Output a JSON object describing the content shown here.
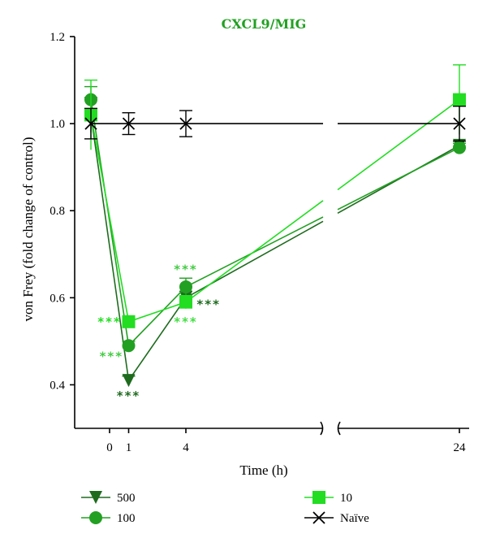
{
  "chart_data": {
    "type": "line",
    "title": "CXCL9/MIG",
    "xlabel": "Time (h)",
    "ylabel": "von Frey (fold change of control)",
    "x_ticks": [
      "0",
      "1",
      "4",
      "24"
    ],
    "y_ticks": [
      "0.4",
      "0.6",
      "0.8",
      "1.0",
      "1.2"
    ],
    "ylim": [
      0.3,
      1.2
    ],
    "x_axis_broken": true,
    "series": [
      {
        "name": "500",
        "marker": "triangle-down",
        "color": "#1e6b1e",
        "x": [
          0,
          1,
          4,
          24
        ],
        "y": [
          1.02,
          0.41,
          0.6,
          0.95
        ],
        "err": [
          0.04,
          0.01,
          0.015,
          0.01
        ]
      },
      {
        "name": "100",
        "marker": "circle",
        "color": "#22a022",
        "x": [
          0,
          1,
          4,
          24
        ],
        "y": [
          1.055,
          0.49,
          0.625,
          0.945
        ],
        "err": [
          0.03,
          0.01,
          0.02,
          0.01
        ]
      },
      {
        "name": "10",
        "marker": "square",
        "color": "#22dd22",
        "x": [
          0,
          1,
          4,
          24
        ],
        "y": [
          1.02,
          0.545,
          0.59,
          1.055
        ],
        "err": [
          0.08,
          0.01,
          0.015,
          0.08
        ]
      },
      {
        "name": "Naïve",
        "marker": "x",
        "color": "#000000",
        "x": [
          0,
          1,
          4,
          24
        ],
        "y": [
          1.0,
          1.0,
          1.0,
          1.0
        ],
        "err": [
          0.035,
          0.025,
          0.03,
          0.04
        ]
      }
    ],
    "annotations": [
      {
        "text": "***",
        "x": 1,
        "y": 0.375,
        "color": "#1e6b1e"
      },
      {
        "text": "***",
        "x": 0.1,
        "y": 0.465,
        "color": "#44cc44"
      },
      {
        "text": "***",
        "x": 0,
        "y": 0.545,
        "color": "#22dd22"
      },
      {
        "text": "***",
        "x": 5.2,
        "y": 0.585,
        "color": "#1e6b1e"
      },
      {
        "text": "***",
        "x": 4,
        "y": 0.665,
        "color": "#44cc44"
      },
      {
        "text": "***",
        "x": 4,
        "y": 0.545,
        "color": "#44dd44"
      }
    ],
    "legend": {
      "placement": "bottom",
      "entries": [
        "500",
        "100",
        "10",
        "Naïve"
      ]
    }
  }
}
